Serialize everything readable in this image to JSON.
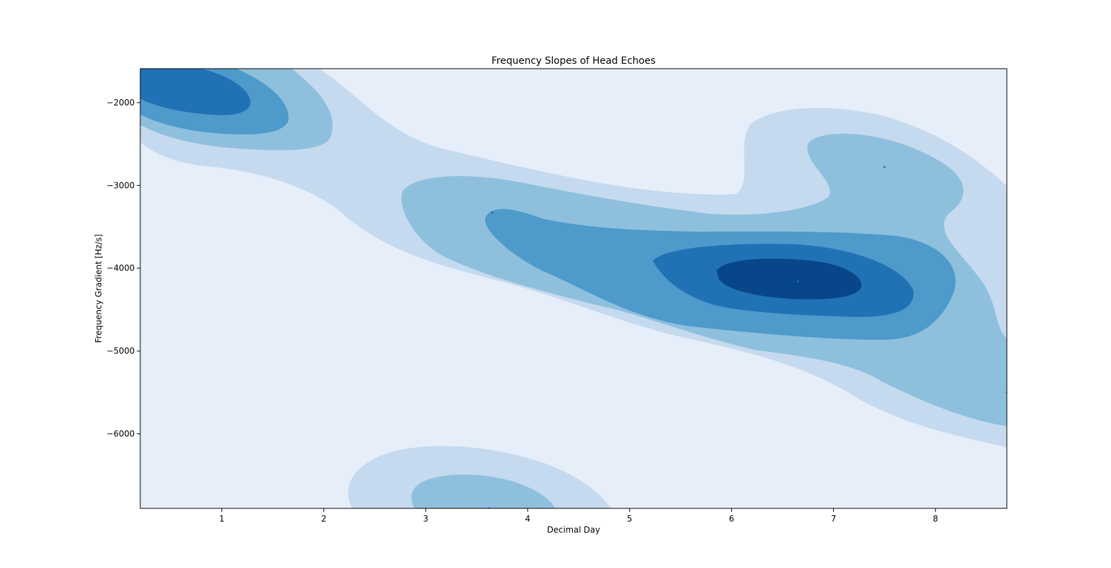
{
  "chart_data": {
    "type": "contour",
    "title": "Frequency Slopes of Head Echoes",
    "xlabel": "Decimal Day",
    "ylabel": "Frequency Gradient [Hz/s]",
    "xlim": [
      0.2,
      8.7
    ],
    "ylim": [
      -6900,
      -1590
    ],
    "xticks": [
      1,
      2,
      3,
      4,
      5,
      6,
      7,
      8
    ],
    "xtick_labels": [
      "1",
      "2",
      "3",
      "4",
      "5",
      "6",
      "7",
      "8"
    ],
    "yticks": [
      -2000,
      -3000,
      -4000,
      -5000,
      -6000
    ],
    "ytick_labels": [
      "−2000",
      "−3000",
      "−4000",
      "−5000",
      "−6000"
    ],
    "grid": false,
    "legend": "none",
    "colormap": "Blues",
    "level_colors": [
      "#e6eef9",
      "#c5daef",
      "#8ec0de",
      "#4d9acb",
      "#2171b5",
      "#08468a"
    ],
    "points": [
      {
        "x": 3.65,
        "y": -3330
      },
      {
        "x": 6.65,
        "y": -4160
      },
      {
        "x": 7.5,
        "y": -2780
      },
      {
        "x": 8.7,
        "y": -5500
      },
      {
        "x": 3.62,
        "y": -6900
      }
    ]
  }
}
